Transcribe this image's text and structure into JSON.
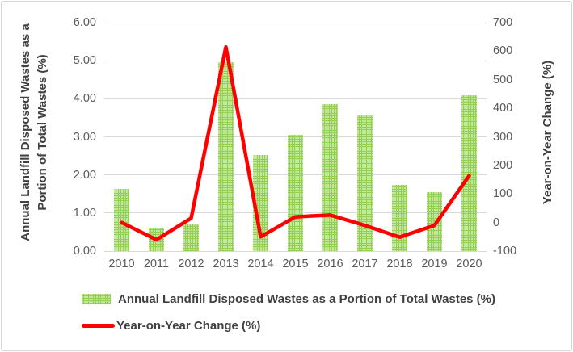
{
  "chart_data": {
    "type": "combo-bar-line",
    "categories": [
      "2010",
      "2011",
      "2012",
      "2013",
      "2014",
      "2015",
      "2016",
      "2017",
      "2018",
      "2019",
      "2020"
    ],
    "series": [
      {
        "name": "Annual Landfill Disposed Wastes as a Portion of Total Wastes (%)",
        "type": "bar",
        "axis": "left",
        "color": "#92d050",
        "values": [
          1.64,
          0.61,
          0.7,
          4.97,
          2.52,
          3.05,
          3.86,
          3.57,
          1.73,
          1.55,
          4.1
        ]
      },
      {
        "name": "Year-on-Year Change (%)",
        "type": "line",
        "axis": "right",
        "color": "#ff0000",
        "values": [
          0,
          -60,
          15,
          615,
          -50,
          20,
          26,
          -10,
          -51,
          -10,
          164
        ]
      }
    ],
    "left_axis": {
      "title_line1": "Annual Landfill Disposed Wastes as a",
      "title_line2": "Portion of Total Wastes (%)",
      "min": 0,
      "max": 6,
      "tick_labels": [
        "0.00",
        "1.00",
        "2.00",
        "3.00",
        "4.00",
        "5.00",
        "6.00"
      ]
    },
    "right_axis": {
      "title": "Year-on-Year Change (%)",
      "min": -100,
      "max": 700,
      "tick_labels": [
        "-100",
        "0",
        "100",
        "200",
        "300",
        "400",
        "500",
        "600",
        "700"
      ]
    },
    "grid": true,
    "legend_position": "bottom"
  },
  "colors": {
    "bar_green": "#92d050",
    "line_red": "#ff0000",
    "gridline": "#d9d9d9",
    "tick_text": "#595959",
    "title_text": "#404040"
  }
}
